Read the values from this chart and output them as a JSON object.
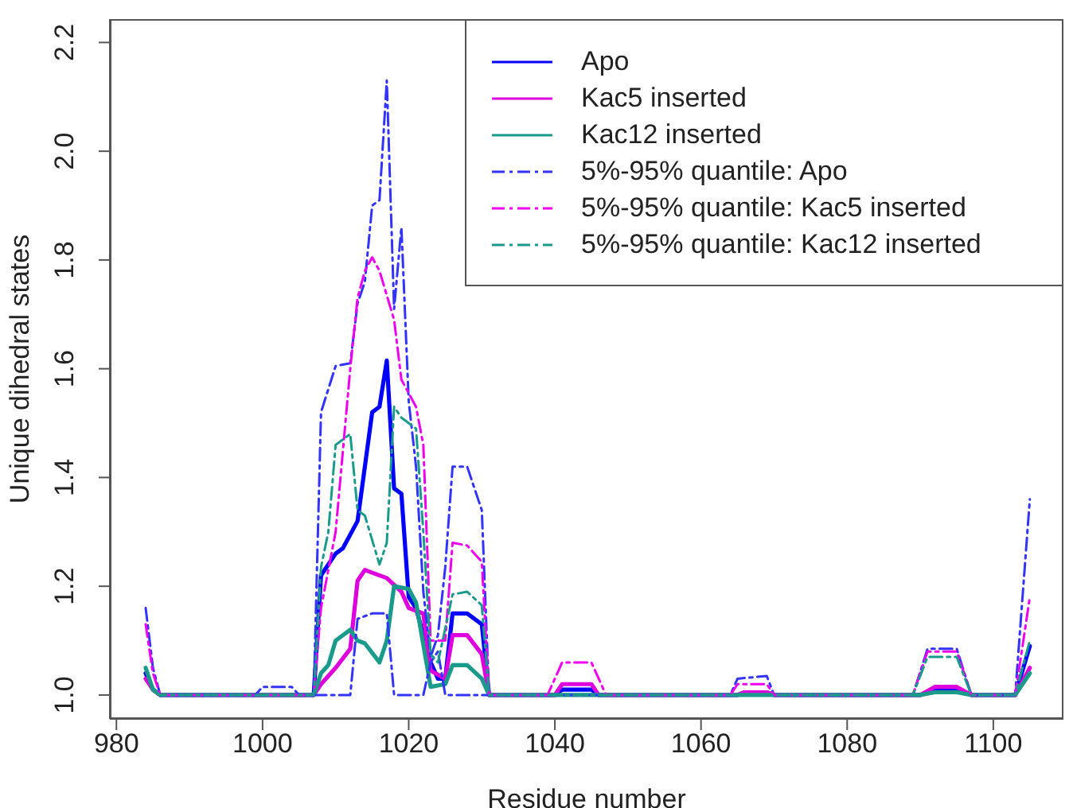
{
  "chart_data": {
    "type": "line",
    "xlabel": "Residue number",
    "ylabel": "Unique dihedral states",
    "xlim": [
      979.1,
      1109.6
    ],
    "ylim": [
      0.956,
      2.243
    ],
    "xticks": [
      980,
      1000,
      1020,
      1040,
      1060,
      1080,
      1100
    ],
    "yticks": [
      {
        "value": 1,
        "label": "1.0"
      },
      1.2,
      1.4,
      1.6,
      1.8,
      {
        "value": 2,
        "label": "2.0"
      },
      2.2
    ],
    "legend": "top right",
    "marker": "none",
    "series": [
      {
        "name": "Apo",
        "color": "#0000ff",
        "line_style": "solid",
        "x": [
          984,
          985,
          986,
          1007,
          1008,
          1010,
          1011,
          1013,
          1015,
          1016,
          1017,
          1018,
          1019,
          1020,
          1021,
          1023,
          1024,
          1025,
          1026,
          1028,
          1030,
          1031,
          1040,
          1041,
          1045,
          1046,
          1065,
          1066,
          1069,
          1070,
          1090,
          1092,
          1095,
          1097,
          1103,
          1105
        ],
        "values": [
          1.04,
          1.01,
          1.0,
          1.0,
          1.22,
          1.26,
          1.27,
          1.32,
          1.52,
          1.53,
          1.615,
          1.38,
          1.37,
          1.18,
          1.16,
          1.06,
          1.03,
          1.03,
          1.15,
          1.15,
          1.13,
          1.0,
          1.0,
          1.01,
          1.01,
          1.0,
          1.0,
          1.005,
          1.005,
          1.0,
          1.0,
          1.01,
          1.01,
          1.0,
          1.0,
          1.09
        ]
      },
      {
        "name": "Kac5 inserted",
        "color": "#dd00dd",
        "line_style": "solid",
        "x": [
          984,
          985,
          986,
          1007,
          1008,
          1010,
          1012,
          1013,
          1014,
          1015,
          1017,
          1019,
          1020,
          1022,
          1023,
          1025,
          1026,
          1028,
          1030,
          1031,
          1040,
          1041,
          1045,
          1046,
          1065,
          1066,
          1069,
          1070,
          1090,
          1092,
          1095,
          1097,
          1103,
          1105
        ],
        "values": [
          1.03,
          1.01,
          1.0,
          1.0,
          1.02,
          1.05,
          1.085,
          1.21,
          1.23,
          1.225,
          1.215,
          1.19,
          1.16,
          1.15,
          1.045,
          1.03,
          1.11,
          1.11,
          1.075,
          1.0,
          1.0,
          1.02,
          1.02,
          1.0,
          1.0,
          1.005,
          1.005,
          1.0,
          1.0,
          1.015,
          1.015,
          1.0,
          1.0,
          1.05
        ]
      },
      {
        "name": "Kac12 inserted",
        "color": "#1a9a8a",
        "line_style": "solid",
        "x": [
          984,
          985,
          986,
          1007,
          1008,
          1009,
          1010,
          1012,
          1013,
          1014,
          1016,
          1017,
          1018,
          1020,
          1021,
          1023,
          1025,
          1026,
          1028,
          1030,
          1031,
          1090,
          1092,
          1095,
          1097,
          1103,
          1105
        ],
        "values": [
          1.05,
          1.01,
          1.0,
          1.0,
          1.04,
          1.055,
          1.1,
          1.12,
          1.1,
          1.095,
          1.06,
          1.1,
          1.2,
          1.195,
          1.17,
          1.015,
          1.02,
          1.055,
          1.055,
          1.03,
          1.0,
          1.0,
          1.005,
          1.005,
          1.0,
          1.0,
          1.04
        ]
      },
      {
        "name": "5%-95% quantile: Apo",
        "color": "#3333ff",
        "line_style": "dashed",
        "x": [
          984,
          985,
          986,
          999,
          1000,
          1004,
          1005,
          1007,
          1008,
          1010,
          1012,
          1013,
          1014,
          1015,
          1016,
          1017,
          1018,
          1019,
          1020,
          1021,
          1022,
          1023,
          1024,
          1025,
          1026,
          1028,
          1030,
          1031,
          1064,
          1065,
          1069,
          1070,
          1089,
          1091,
          1095,
          1097,
          1103,
          1105
        ],
        "values": [
          1.16,
          1.05,
          1.0,
          1.0,
          1.015,
          1.015,
          1.0,
          1.0,
          1.52,
          1.605,
          1.61,
          1.72,
          1.76,
          1.9,
          1.91,
          2.13,
          1.71,
          1.86,
          1.54,
          1.42,
          1.19,
          1.07,
          1.11,
          1.235,
          1.42,
          1.42,
          1.34,
          1.0,
          1.0,
          1.03,
          1.035,
          1.0,
          1.0,
          1.085,
          1.085,
          1.0,
          1.0,
          1.36
        ]
      },
      {
        "color": "#3333ff",
        "line_style": "dashed",
        "x": [
          1007,
          1012,
          1013,
          1015,
          1017,
          1018,
          1022,
          1023,
          1024,
          1025,
          1031
        ],
        "values": [
          1.0,
          1.0,
          1.14,
          1.15,
          1.15,
          1.0,
          1.0,
          1.06,
          1.08,
          1.0,
          1.0
        ]
      },
      {
        "name": "5%-95% quantile: Kac5 inserted",
        "color": "#ee00ee",
        "line_style": "dashed",
        "x": [
          984,
          985,
          986,
          1007,
          1008,
          1010,
          1012,
          1013,
          1014,
          1015,
          1016,
          1018,
          1019,
          1021,
          1022,
          1023,
          1024,
          1025,
          1026,
          1028,
          1030,
          1031,
          1039,
          1041,
          1045,
          1047,
          1064,
          1065,
          1069,
          1070,
          1089,
          1091,
          1095,
          1097,
          1103,
          1105
        ],
        "values": [
          1.13,
          1.04,
          1.0,
          1.0,
          1.16,
          1.3,
          1.6,
          1.73,
          1.78,
          1.805,
          1.78,
          1.69,
          1.58,
          1.53,
          1.46,
          1.1,
          1.1,
          1.1,
          1.28,
          1.275,
          1.245,
          1.0,
          1.0,
          1.06,
          1.06,
          1.0,
          1.0,
          1.02,
          1.02,
          1.0,
          1.0,
          1.08,
          1.08,
          1.0,
          1.0,
          1.18
        ]
      },
      {
        "name": "5%-95% quantile: Kac12 inserted",
        "color": "#1a9a8a",
        "line_style": "dashed",
        "x": [
          984,
          985,
          986,
          1007,
          1008,
          1009,
          1010,
          1011,
          1012,
          1013,
          1014,
          1016,
          1017,
          1018,
          1019,
          1021,
          1022,
          1023,
          1024,
          1026,
          1028,
          1030,
          1031,
          1089,
          1091,
          1095,
          1097,
          1103,
          1105
        ],
        "values": [
          1.05,
          1.01,
          1.0,
          1.0,
          1.235,
          1.3,
          1.46,
          1.47,
          1.48,
          1.34,
          1.33,
          1.24,
          1.28,
          1.53,
          1.51,
          1.49,
          1.3,
          1.075,
          1.06,
          1.185,
          1.19,
          1.165,
          1.0,
          1.0,
          1.07,
          1.07,
          1.0,
          1.0,
          1.1
        ]
      }
    ]
  }
}
